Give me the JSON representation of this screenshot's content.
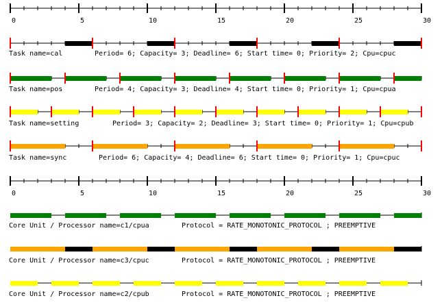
{
  "axis": {
    "min": 0,
    "max": 30,
    "major_ticks": [
      0,
      5,
      10,
      15,
      20,
      25,
      30
    ],
    "minor_step": 1
  },
  "colors": {
    "green": "#008000",
    "yellow": "#ffff00",
    "orange": "#ffa500",
    "black": "#000000",
    "release": "#ff0000"
  },
  "tasks": [
    {
      "key": "cal",
      "name_label": "Task name=cal",
      "params_label": "Period= 6; Capacity= 3; Deadline= 6; Start time= 0; Priority= 2; Cpu=cpuc",
      "period": 6,
      "color": "#000000",
      "segments": [
        [
          4,
          6
        ],
        [
          10,
          12
        ],
        [
          16,
          18
        ],
        [
          22,
          24
        ],
        [
          28,
          30
        ]
      ]
    },
    {
      "key": "pos",
      "name_label": "Task name=pos",
      "params_label": "Period= 4; Capacity= 3; Deadline= 4; Start time= 0; Priority= 1; Cpu=cpua",
      "period": 4,
      "color": "#008000",
      "segments": [
        [
          0,
          3
        ],
        [
          4,
          7
        ],
        [
          8,
          11
        ],
        [
          12,
          15
        ],
        [
          16,
          19
        ],
        [
          20,
          23
        ],
        [
          24,
          27
        ],
        [
          28,
          30
        ]
      ]
    },
    {
      "key": "setting",
      "name_label": "Task name=setting",
      "params_label": "Period= 3; Capacity= 2; Deadline= 3; Start time= 0; Priority= 1; Cpu=cpub",
      "period": 3,
      "color": "#ffff00",
      "segments": [
        [
          0,
          2
        ],
        [
          3,
          5
        ],
        [
          6,
          8
        ],
        [
          9,
          11
        ],
        [
          12,
          14
        ],
        [
          15,
          17
        ],
        [
          18,
          20
        ],
        [
          21,
          23
        ],
        [
          24,
          26
        ],
        [
          27,
          29
        ]
      ]
    },
    {
      "key": "sync",
      "name_label": "Task name=sync",
      "params_label": "Period= 6; Capacity= 4; Deadline= 6; Start time= 0; Priority= 1; Cpu=cpuc",
      "period": 6,
      "color": "#ffa500",
      "segments": [
        [
          0,
          4
        ],
        [
          6,
          10
        ],
        [
          12,
          16
        ],
        [
          18,
          22
        ],
        [
          24,
          28
        ]
      ]
    }
  ],
  "processors": [
    {
      "key": "c1",
      "label": "Core Unit / Processor name=c1/cpua",
      "protocol": "Protocol = RATE_MONOTONIC_PROTOCOL ; PREEMPTIVE",
      "segments": [
        {
          "from": 0,
          "to": 3,
          "color": "#008000"
        },
        {
          "from": 4,
          "to": 7,
          "color": "#008000"
        },
        {
          "from": 8,
          "to": 11,
          "color": "#008000"
        },
        {
          "from": 12,
          "to": 15,
          "color": "#008000"
        },
        {
          "from": 16,
          "to": 19,
          "color": "#008000"
        },
        {
          "from": 20,
          "to": 23,
          "color": "#008000"
        },
        {
          "from": 24,
          "to": 27,
          "color": "#008000"
        },
        {
          "from": 28,
          "to": 30,
          "color": "#008000"
        }
      ]
    },
    {
      "key": "c3",
      "label": "Core Unit / Processor name=c3/cpuc",
      "protocol": "Protocol = RATE_MONOTONIC_PROTOCOL ; PREEMPTIVE",
      "segments": [
        {
          "from": 0,
          "to": 4,
          "color": "#ffa500"
        },
        {
          "from": 4,
          "to": 6,
          "color": "#000000"
        },
        {
          "from": 6,
          "to": 10,
          "color": "#ffa500"
        },
        {
          "from": 10,
          "to": 12,
          "color": "#000000"
        },
        {
          "from": 12,
          "to": 16,
          "color": "#ffa500"
        },
        {
          "from": 16,
          "to": 18,
          "color": "#000000"
        },
        {
          "from": 18,
          "to": 22,
          "color": "#ffa500"
        },
        {
          "from": 22,
          "to": 24,
          "color": "#000000"
        },
        {
          "from": 24,
          "to": 28,
          "color": "#ffa500"
        },
        {
          "from": 28,
          "to": 30,
          "color": "#000000"
        }
      ]
    },
    {
      "key": "c2",
      "label": "Core Unit / Processor name=c2/cpub",
      "protocol": "Protocol = RATE_MONOTONIC_PROTOCOL ; PREEMPTIVE",
      "segments": [
        {
          "from": 0,
          "to": 2,
          "color": "#ffff00"
        },
        {
          "from": 3,
          "to": 5,
          "color": "#ffff00"
        },
        {
          "from": 6,
          "to": 8,
          "color": "#ffff00"
        },
        {
          "from": 9,
          "to": 11,
          "color": "#ffff00"
        },
        {
          "from": 12,
          "to": 14,
          "color": "#ffff00"
        },
        {
          "from": 15,
          "to": 17,
          "color": "#ffff00"
        },
        {
          "from": 18,
          "to": 20,
          "color": "#ffff00"
        },
        {
          "from": 21,
          "to": 23,
          "color": "#ffff00"
        },
        {
          "from": 24,
          "to": 26,
          "color": "#ffff00"
        },
        {
          "from": 27,
          "to": 29,
          "color": "#ffff00"
        }
      ]
    }
  ]
}
